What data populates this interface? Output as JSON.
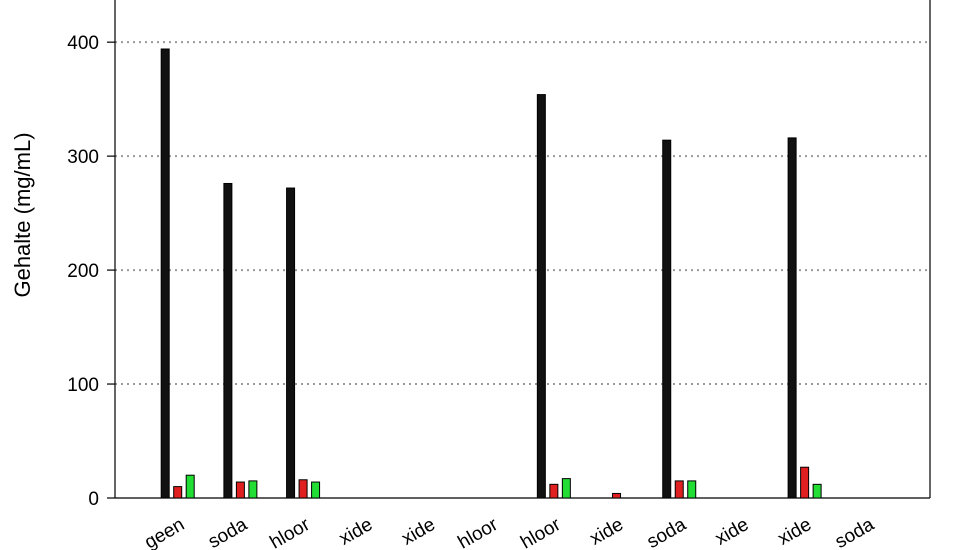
{
  "chart_data": {
    "type": "bar",
    "y_label": "Gehalte (mg/mL)",
    "categories": [
      "geen",
      "soda",
      "hloor",
      "xide",
      "xide",
      "hloor",
      "hloor",
      "xide",
      "soda",
      "xide",
      "xide",
      "soda"
    ],
    "series": [
      {
        "color": "#111111",
        "values": [
          394,
          276,
          272,
          null,
          null,
          null,
          354,
          null,
          314,
          null,
          316,
          null
        ]
      },
      {
        "color": "#e02020",
        "values": [
          10,
          14,
          16,
          null,
          null,
          null,
          12,
          4,
          15,
          null,
          27,
          null
        ]
      },
      {
        "color": "#22dd33",
        "values": [
          20,
          15,
          14,
          null,
          null,
          null,
          17,
          null,
          15,
          null,
          12,
          null
        ]
      }
    ],
    "ylim": [
      0,
      437
    ],
    "yticks": [
      0,
      100,
      200,
      300,
      400
    ],
    "grid": true
  }
}
